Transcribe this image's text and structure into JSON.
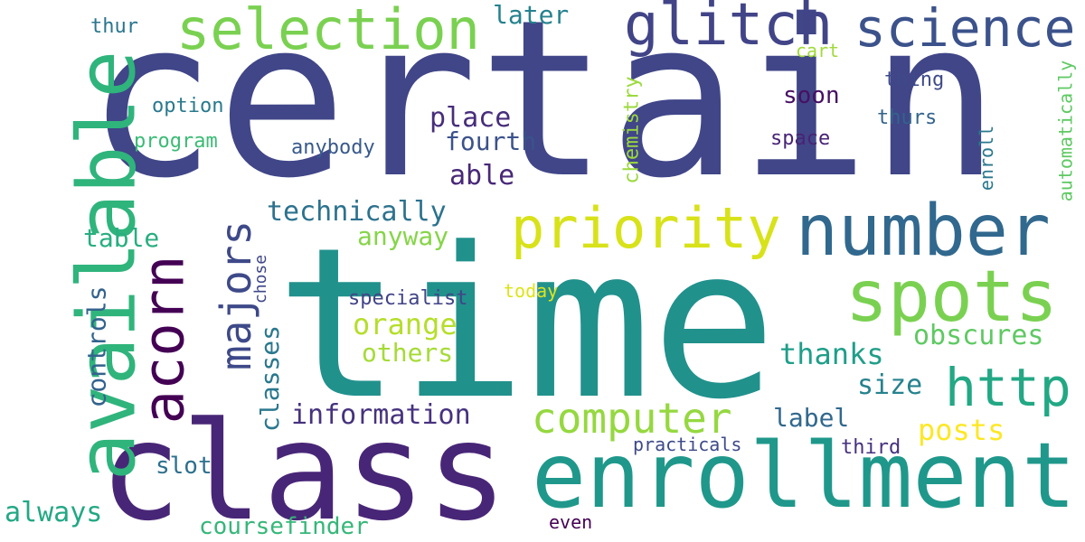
{
  "words": {
    "certain": {
      "text": "certain",
      "color": "#404688"
    },
    "time": {
      "text": "time",
      "color": "#21918c"
    },
    "class": {
      "text": "class",
      "color": "#482677"
    },
    "enrollment": {
      "text": "enrollment",
      "color": "#1f988b"
    },
    "available": {
      "text": "available",
      "color": "#2fb47c"
    },
    "number": {
      "text": "number",
      "color": "#31688e"
    },
    "spots": {
      "text": "spots",
      "color": "#7ad151"
    },
    "glitch": {
      "text": "glitch",
      "color": "#414487"
    },
    "science": {
      "text": "science",
      "color": "#3b528b"
    },
    "selection": {
      "text": "selection",
      "color": "#7ad151"
    },
    "priority": {
      "text": "priority",
      "color": "#d8e219"
    },
    "acorn": {
      "text": "acorn",
      "color": "#440154"
    },
    "majors": {
      "text": "majors",
      "color": "#3e4989"
    },
    "http": {
      "text": "http",
      "color": "#22a884"
    },
    "computer": {
      "text": "computer",
      "color": "#95d840"
    },
    "orange": {
      "text": "orange",
      "color": "#b5de2b"
    },
    "others": {
      "text": "others",
      "color": "#a5db36"
    },
    "anyway": {
      "text": "anyway",
      "color": "#86d549"
    },
    "technically": {
      "text": "technically",
      "color": "#2c728e"
    },
    "information": {
      "text": "information",
      "color": "#46327e"
    },
    "place": {
      "text": "place",
      "color": "#472d7b"
    },
    "fourth": {
      "text": "fourth",
      "color": "#3b528b"
    },
    "able": {
      "text": "able",
      "color": "#482878"
    },
    "later": {
      "text": "later",
      "color": "#26828e"
    },
    "thanks": {
      "text": "thanks",
      "color": "#1f9e89"
    },
    "obscures": {
      "text": "obscures",
      "color": "#5ec962"
    },
    "size": {
      "text": "size",
      "color": "#26828e"
    },
    "label": {
      "text": "label",
      "color": "#31688e"
    },
    "posts": {
      "text": "posts",
      "color": "#fde725"
    },
    "table": {
      "text": "table",
      "color": "#28ae80"
    },
    "controls": {
      "text": "controls",
      "color": "#33638d"
    },
    "classes": {
      "text": "classes",
      "color": "#2a788e"
    },
    "chose": {
      "text": "chose",
      "color": "#3f4788"
    },
    "slot": {
      "text": "slot",
      "color": "#2d708e"
    },
    "always": {
      "text": "always",
      "color": "#22a884"
    },
    "coursefinder": {
      "text": "coursefinder",
      "color": "#35b779"
    },
    "even": {
      "text": "even",
      "color": "#440154"
    },
    "practicals": {
      "text": "practicals",
      "color": "#3e4a89"
    },
    "third": {
      "text": "third",
      "color": "#46307e"
    },
    "specialist": {
      "text": "specialist",
      "color": "#414487"
    },
    "today": {
      "text": "today",
      "color": "#dde318"
    },
    "soon": {
      "text": "soon",
      "color": "#471063"
    },
    "space": {
      "text": "space",
      "color": "#482475"
    },
    "thing": {
      "text": "thing",
      "color": "#3e4a89"
    },
    "thurs": {
      "text": "thurs",
      "color": "#33638d"
    },
    "cart": {
      "text": "cart",
      "color": "#a0da39"
    },
    "enroll": {
      "text": "enroll",
      "color": "#2a788e"
    },
    "automatically": {
      "text": "automatically",
      "color": "#5ec962"
    },
    "chemistry": {
      "text": "chemistry",
      "color": "#9bd93c"
    },
    "option": {
      "text": "option",
      "color": "#29798e"
    },
    "program": {
      "text": "program",
      "color": "#3bbb75"
    },
    "anybody": {
      "text": "anybody",
      "color": "#38598c"
    },
    "thur": {
      "text": "thur",
      "color": "#2a768e"
    }
  }
}
